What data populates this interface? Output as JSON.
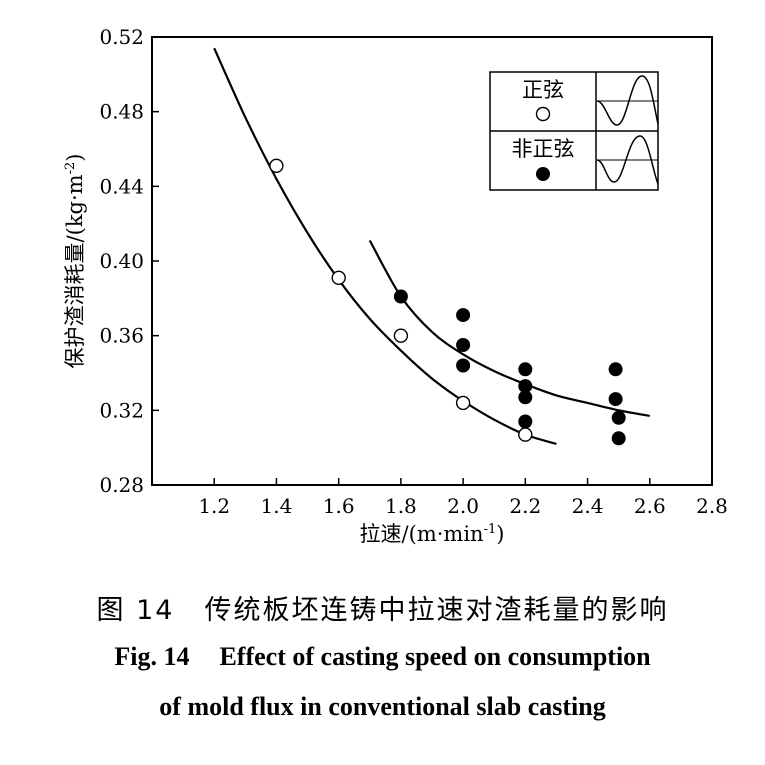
{
  "chart_data": {
    "type": "scatter",
    "xlabel": "拉速/(m·min",
    "xlabel_sup": "-1",
    "xlabel_close": ")",
    "ylabel": "保护渣消耗量/(kg·m",
    "ylabel_sup": "-2",
    "ylabel_close": ")",
    "xlim": [
      1.0,
      2.8
    ],
    "ylim": [
      0.28,
      0.52
    ],
    "x_ticks": [
      "1.2",
      "1.4",
      "1.6",
      "1.8",
      "2.0",
      "2.2",
      "2.4",
      "2.6",
      "2.8"
    ],
    "y_ticks": [
      "0.28",
      "0.32",
      "0.36",
      "0.40",
      "0.44",
      "0.48",
      "0.52"
    ],
    "grid": false,
    "legend_position": "top-right",
    "series": [
      {
        "name": "正弦",
        "marker": "open-circle",
        "points": [
          [
            1.4,
            0.451
          ],
          [
            1.6,
            0.391
          ],
          [
            1.8,
            0.36
          ],
          [
            2.0,
            0.324
          ],
          [
            2.2,
            0.307
          ]
        ],
        "fit_curve": [
          [
            1.2,
            0.514
          ],
          [
            1.3,
            0.477
          ],
          [
            1.4,
            0.444
          ],
          [
            1.5,
            0.415
          ],
          [
            1.6,
            0.39
          ],
          [
            1.7,
            0.369
          ],
          [
            1.8,
            0.352
          ],
          [
            1.9,
            0.337
          ],
          [
            2.0,
            0.325
          ],
          [
            2.1,
            0.315
          ],
          [
            2.2,
            0.307
          ],
          [
            2.3,
            0.302
          ]
        ]
      },
      {
        "name": "非正弦",
        "marker": "filled-circle",
        "points": [
          [
            1.8,
            0.381
          ],
          [
            2.0,
            0.371
          ],
          [
            2.0,
            0.355
          ],
          [
            2.0,
            0.344
          ],
          [
            2.2,
            0.342
          ],
          [
            2.2,
            0.333
          ],
          [
            2.2,
            0.327
          ],
          [
            2.2,
            0.314
          ],
          [
            2.49,
            0.342
          ],
          [
            2.49,
            0.326
          ],
          [
            2.5,
            0.316
          ],
          [
            2.5,
            0.305
          ]
        ],
        "fit_curve": [
          [
            1.7,
            0.411
          ],
          [
            1.8,
            0.381
          ],
          [
            1.9,
            0.362
          ],
          [
            2.0,
            0.35
          ],
          [
            2.1,
            0.341
          ],
          [
            2.2,
            0.334
          ],
          [
            2.3,
            0.328
          ],
          [
            2.4,
            0.324
          ],
          [
            2.5,
            0.32
          ],
          [
            2.6,
            0.317
          ]
        ]
      }
    ]
  },
  "caption": {
    "cn_label": "图 14",
    "cn_text": "传统板坯连铸中拉速对渣耗量的影响",
    "en_label": "Fig. 14",
    "en_line1": "Effect of casting speed on consumption",
    "en_line2": "of mold flux in conventional slab casting"
  }
}
